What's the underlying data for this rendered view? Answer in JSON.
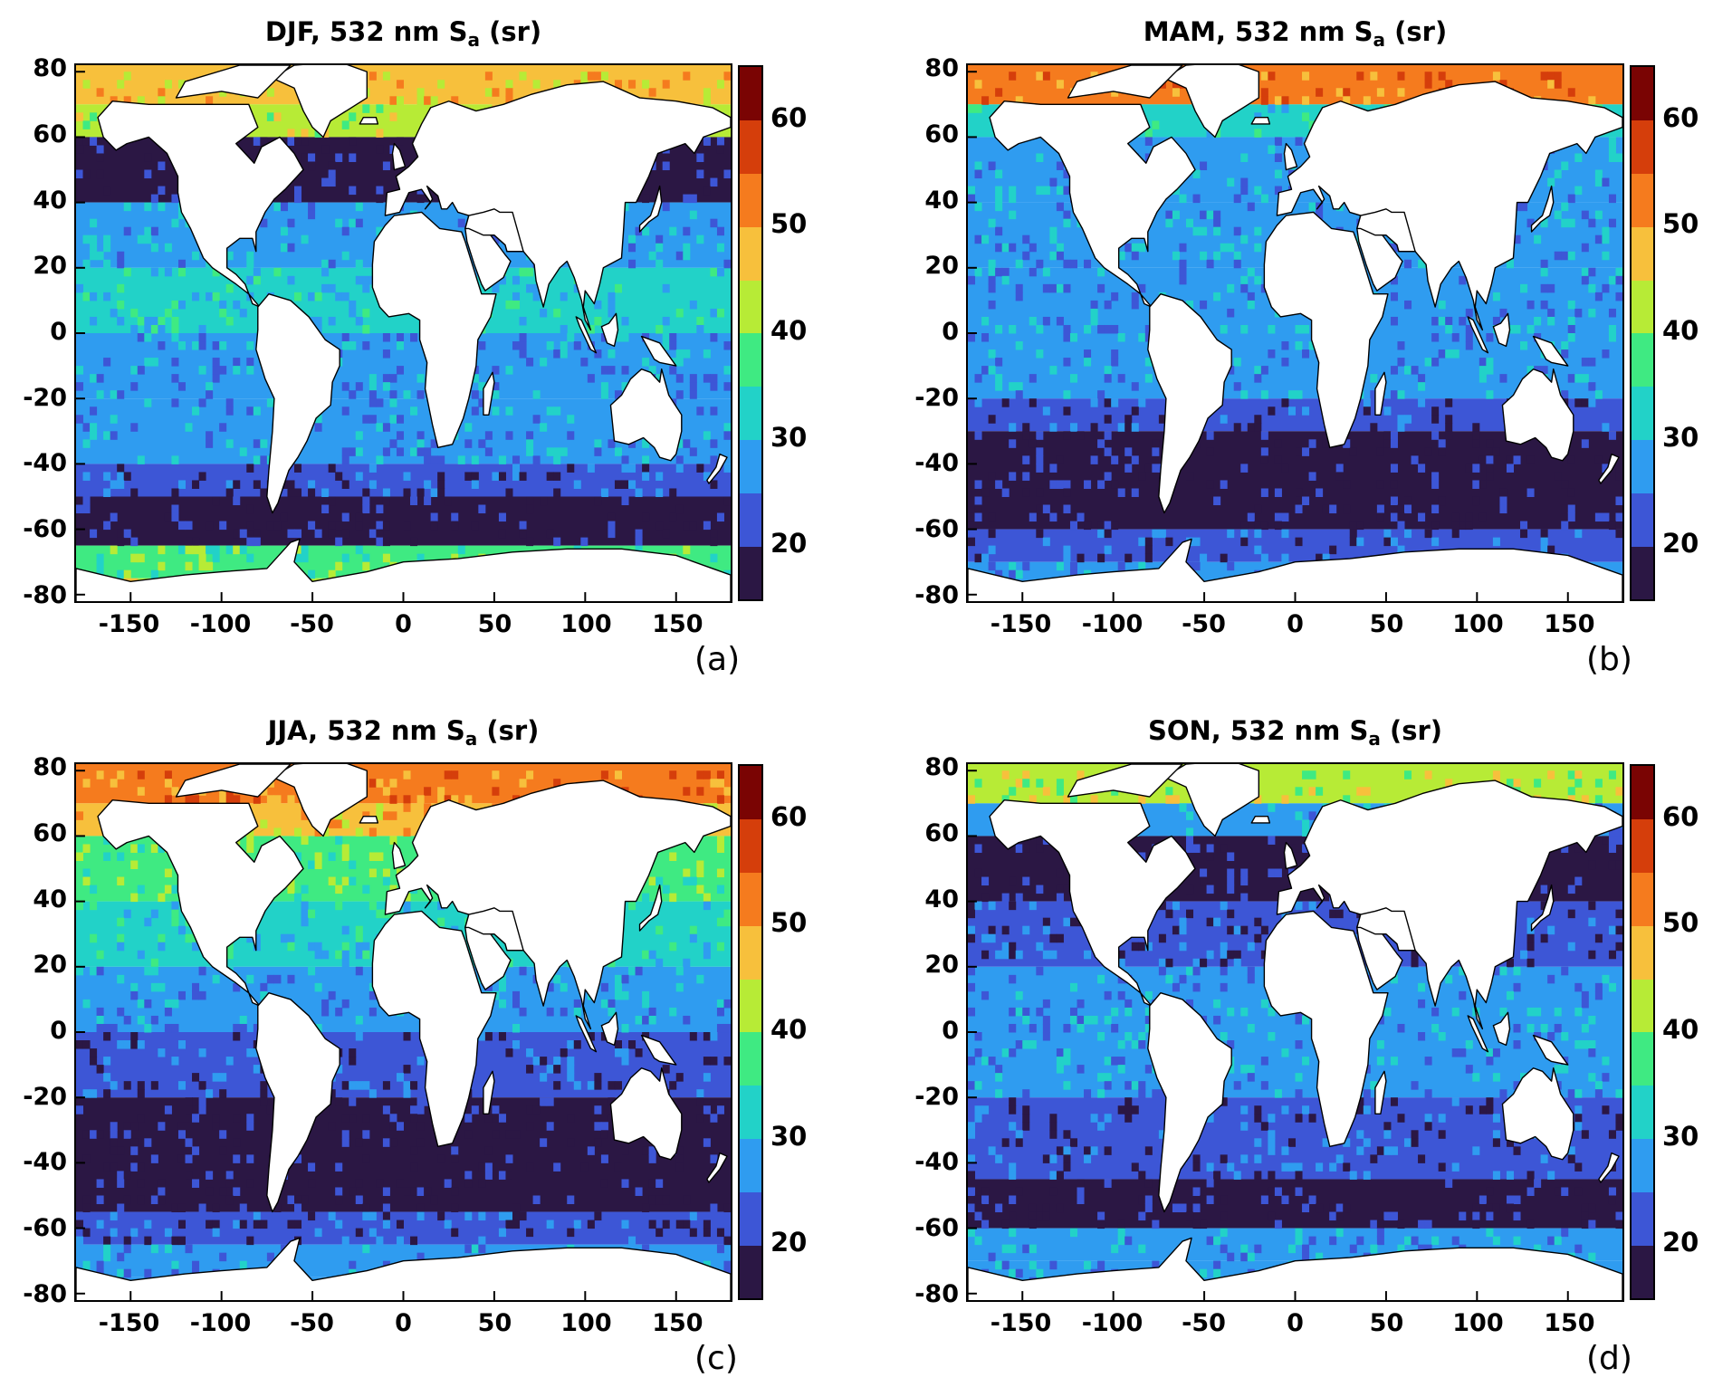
{
  "figure": {
    "panels": [
      {
        "id": "a",
        "season": "DJF",
        "title_prefix": "DJF, 532 nm S",
        "title_sub": "a",
        "title_suffix": " (sr)",
        "letter": "(a)",
        "band_values": [
          {
            "lat_max": 90,
            "value": 48
          },
          {
            "lat_max": 70,
            "value": 40
          },
          {
            "lat_max": 60,
            "value": 19
          },
          {
            "lat_max": 40,
            "value": 25
          },
          {
            "lat_max": 20,
            "value": 32
          },
          {
            "lat_max": 0,
            "value": 29
          },
          {
            "lat_max": -20,
            "value": 26
          },
          {
            "lat_max": -40,
            "value": 24
          },
          {
            "lat_max": -50,
            "value": 19
          },
          {
            "lat_max": -65,
            "value": 38
          },
          {
            "lat_max": -75,
            "value": 40
          }
        ]
      },
      {
        "id": "b",
        "season": "MAM",
        "title_prefix": "MAM, 532 nm S",
        "title_sub": "a",
        "title_suffix": " (sr)",
        "letter": "(b)",
        "band_values": [
          {
            "lat_max": 90,
            "value": 54
          },
          {
            "lat_max": 70,
            "value": 33
          },
          {
            "lat_max": 60,
            "value": 29
          },
          {
            "lat_max": 40,
            "value": 29
          },
          {
            "lat_max": 20,
            "value": 28
          },
          {
            "lat_max": 0,
            "value": 27
          },
          {
            "lat_max": -20,
            "value": 23
          },
          {
            "lat_max": -30,
            "value": 18
          },
          {
            "lat_max": -60,
            "value": 23
          },
          {
            "lat_max": -70,
            "value": 28
          },
          {
            "lat_max": -80,
            "value": 28
          }
        ]
      },
      {
        "id": "c",
        "season": "JJA",
        "title_prefix": "JJA, 532 nm S",
        "title_sub": "a",
        "title_suffix": " (sr)",
        "letter": "(c)",
        "band_values": [
          {
            "lat_max": 90,
            "value": 54
          },
          {
            "lat_max": 70,
            "value": 45
          },
          {
            "lat_max": 60,
            "value": 37
          },
          {
            "lat_max": 40,
            "value": 30
          },
          {
            "lat_max": 20,
            "value": 27
          },
          {
            "lat_max": 0,
            "value": 24
          },
          {
            "lat_max": -20,
            "value": 18
          },
          {
            "lat_max": -55,
            "value": 23
          },
          {
            "lat_max": -65,
            "value": 28
          },
          {
            "lat_max": -75,
            "value": 28
          }
        ]
      },
      {
        "id": "d",
        "season": "SON",
        "title_prefix": "SON, 532 nm S",
        "title_sub": "a",
        "title_suffix": " (sr)",
        "letter": "(d)",
        "band_values": [
          {
            "lat_max": 90,
            "value": 42
          },
          {
            "lat_max": 70,
            "value": 25
          },
          {
            "lat_max": 60,
            "value": 19
          },
          {
            "lat_max": 40,
            "value": 24
          },
          {
            "lat_max": 20,
            "value": 27
          },
          {
            "lat_max": 0,
            "value": 26
          },
          {
            "lat_max": -20,
            "value": 24
          },
          {
            "lat_max": -45,
            "value": 19
          },
          {
            "lat_max": -60,
            "value": 25
          },
          {
            "lat_max": -70,
            "value": 28
          }
        ]
      }
    ],
    "x_ticks": [
      "-150",
      "-100",
      "-50",
      "0",
      "50",
      "100",
      "150"
    ],
    "x_tick_values": [
      -150,
      -100,
      -50,
      0,
      50,
      100,
      150
    ],
    "y_ticks": [
      "80",
      "60",
      "40",
      "20",
      "0",
      "-20",
      "-40",
      "-60",
      "-80"
    ],
    "y_tick_values": [
      80,
      60,
      40,
      20,
      0,
      -20,
      -40,
      -60,
      -80
    ],
    "xlim": [
      -180,
      180
    ],
    "ylim": [
      -82,
      82
    ],
    "colorbar": {
      "ticks": [
        "20",
        "30",
        "40",
        "50",
        "60"
      ],
      "tick_values": [
        20,
        30,
        40,
        50,
        60
      ],
      "range": [
        15,
        65
      ],
      "levels": [
        {
          "from": 15,
          "to": 20,
          "color": "#2b1744"
        },
        {
          "from": 20,
          "to": 25,
          "color": "#3d56d6"
        },
        {
          "from": 25,
          "to": 30,
          "color": "#2f9cf0"
        },
        {
          "from": 30,
          "to": 35,
          "color": "#22d2c8"
        },
        {
          "from": 35,
          "to": 40,
          "color": "#3fea82"
        },
        {
          "from": 40,
          "to": 45,
          "color": "#b7eb36"
        },
        {
          "from": 45,
          "to": 50,
          "color": "#f7c03c"
        },
        {
          "from": 50,
          "to": 55,
          "color": "#f57b1e"
        },
        {
          "from": 55,
          "to": 60,
          "color": "#d53e0b"
        },
        {
          "from": 60,
          "to": 65,
          "color": "#7a0403"
        }
      ]
    },
    "land_color": "#ffffff"
  }
}
